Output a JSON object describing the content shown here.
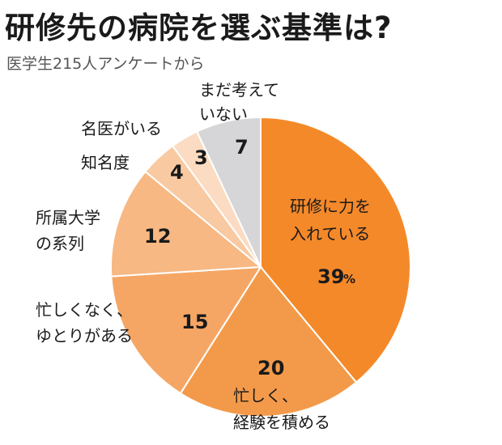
{
  "chart_data": {
    "type": "pie",
    "title": "研修先の病院を選ぶ基準は?",
    "subtitle": "医学生215人アンケートから",
    "unit": "%",
    "slices": [
      {
        "label": [
          "研修に力を",
          "入れている"
        ],
        "value": 39,
        "color": "#f4892a"
      },
      {
        "label": [
          "忙しく、",
          "経験を積める"
        ],
        "value": 20,
        "color": "#f39a4a"
      },
      {
        "label": [
          "忙しくなく、",
          "ゆとりがある"
        ],
        "value": 15,
        "color": "#f5a665"
      },
      {
        "label": [
          "所属大学",
          "の系列"
        ],
        "value": 12,
        "color": "#f7b883"
      },
      {
        "label": [
          "知名度"
        ],
        "value": 4,
        "color": "#f9c9a2"
      },
      {
        "label": [
          "名医がいる"
        ],
        "value": 3,
        "color": "#fbdcc2"
      },
      {
        "label": [
          "まだ考えて",
          "いない"
        ],
        "value": 7,
        "color": "#d6d6d8"
      }
    ]
  }
}
